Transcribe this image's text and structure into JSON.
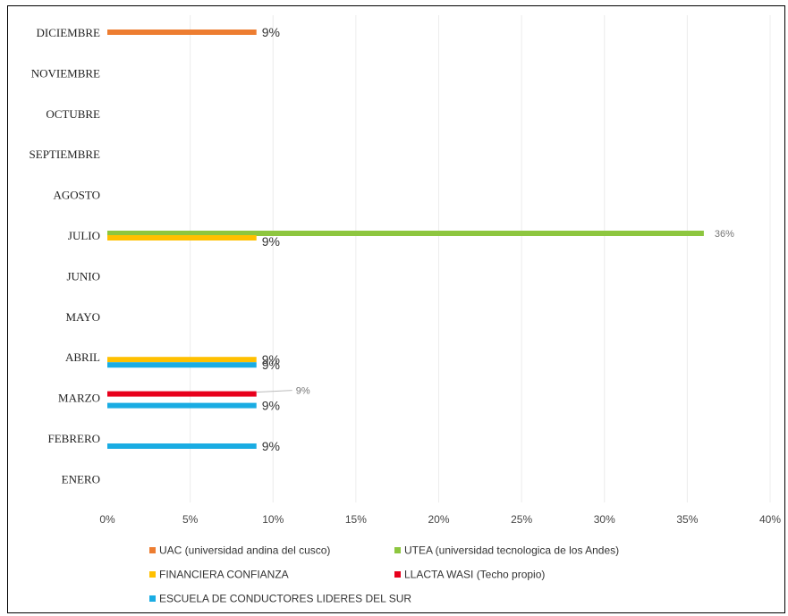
{
  "chart_data": {
    "type": "bar",
    "orientation": "horizontal",
    "categories": [
      "ENERO",
      "FEBRERO",
      "MARZO",
      "ABRIL",
      "MAYO",
      "JUNIO",
      "JULIO",
      "AGOSTO",
      "SEPTIEMBRE",
      "OCTUBRE",
      "NOVIEMBRE",
      "DICIEMBRE"
    ],
    "xlim": [
      0,
      0.4
    ],
    "x_ticks": [
      {
        "value": 0,
        "label": "0%"
      },
      {
        "value": 0.05,
        "label": "5%"
      },
      {
        "value": 0.1,
        "label": "10%"
      },
      {
        "value": 0.15,
        "label": "15%"
      },
      {
        "value": 0.2,
        "label": "20%"
      },
      {
        "value": 0.25,
        "label": "25%"
      },
      {
        "value": 0.3,
        "label": "30%"
      },
      {
        "value": 0.35,
        "label": "35%"
      },
      {
        "value": 0.4,
        "label": "40%"
      }
    ],
    "grid": true,
    "legend_position": "bottom",
    "series": [
      {
        "name": "UAC (universidad andina del cusco)",
        "color": "#ED7D31",
        "values": [
          null,
          null,
          null,
          null,
          null,
          null,
          null,
          null,
          null,
          null,
          null,
          0.09
        ],
        "labels": [
          "",
          "",
          "",
          "",
          "",
          "",
          "",
          "",
          "",
          "",
          "",
          "9%"
        ]
      },
      {
        "name": "UTEA (universidad tecnologica de los Andes)",
        "color": "#8DC63F",
        "values": [
          null,
          null,
          null,
          null,
          null,
          null,
          0.36,
          null,
          null,
          null,
          null,
          null
        ],
        "labels": [
          "",
          "",
          "",
          "",
          "",
          "",
          "36%",
          "",
          "",
          "",
          "",
          ""
        ]
      },
      {
        "name": "FINANCIERA CONFIANZA",
        "color": "#FFC000",
        "values": [
          null,
          null,
          null,
          0.09,
          null,
          null,
          0.09,
          null,
          null,
          null,
          null,
          null
        ],
        "labels": [
          "",
          "",
          "",
          "9%",
          "",
          "",
          "9%",
          "",
          "",
          "",
          "",
          ""
        ]
      },
      {
        "name": "LLACTA WASI (Techo propio)",
        "color": "#E8001C",
        "values": [
          null,
          null,
          0.09,
          null,
          null,
          null,
          null,
          null,
          null,
          null,
          null,
          null
        ],
        "labels": [
          "",
          "",
          "9%",
          "",
          "",
          "",
          "",
          "",
          "",
          "",
          "",
          ""
        ]
      },
      {
        "name": "ESCUELA DE CONDUCTORES LIDERES DEL SUR",
        "color": "#1AACE3",
        "values": [
          null,
          0.09,
          0.09,
          0.09,
          null,
          null,
          null,
          null,
          null,
          null,
          null,
          null
        ],
        "labels": [
          "",
          "9%",
          "9%",
          "9%",
          "",
          "",
          "",
          "",
          "",
          "",
          "",
          ""
        ]
      }
    ]
  }
}
